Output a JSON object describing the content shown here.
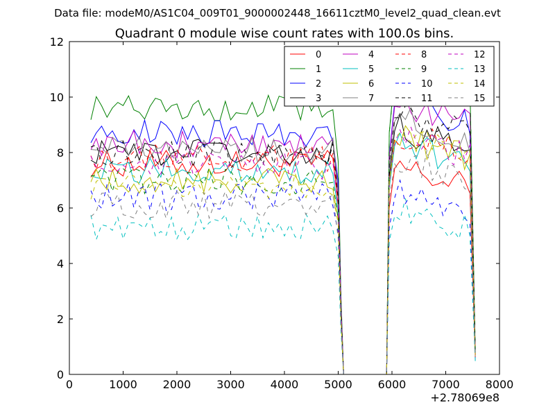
{
  "chart_data": {
    "type": "line",
    "suptitle": "Data file: modeM0/AS1C04_009T01_9000002448_16611cztM0_level2_quad_clean.evt",
    "title": "Quadrant 0 module wise count rates with 100.0s bins.",
    "xlabel": "",
    "ylabel": "",
    "x_offset_label": "+2.78069e8",
    "xlim": [
      0,
      8000
    ],
    "ylim": [
      0,
      12
    ],
    "xticks": [
      0,
      1000,
      2000,
      3000,
      4000,
      5000,
      6000,
      7000,
      8000
    ],
    "yticks": [
      0,
      2,
      4,
      6,
      8,
      10,
      12
    ],
    "xtick_labels": [
      "0",
      "1000",
      "2000",
      "3000",
      "4000",
      "5000",
      "6000",
      "7000",
      "8000"
    ],
    "ytick_labels": [
      "0",
      "2",
      "4",
      "6",
      "8",
      "10",
      "12"
    ],
    "grid": false,
    "legend_position": "top-right",
    "segments": [
      {
        "x_start": 400,
        "x_end": 4900,
        "step": 100
      },
      {
        "x_start": 5000,
        "x_end": 5100,
        "step": 100
      },
      {
        "x_start": 5900,
        "x_end": 6000,
        "step": 100
      },
      {
        "x_start": 6050,
        "x_end": 7450,
        "step": 100
      },
      {
        "x_start": 7550,
        "x_end": 7550,
        "step": 100
      }
    ],
    "series": [
      {
        "name": "0",
        "color": "#ff0000",
        "dash": "solid",
        "level": 7.6,
        "quiet": 7.5
      },
      {
        "name": "1",
        "color": "#008000",
        "dash": "solid",
        "level": 9.6,
        "quiet": 10.9
      },
      {
        "name": "2",
        "color": "#0000ff",
        "dash": "solid",
        "level": 8.7,
        "quiet": 9.9
      },
      {
        "name": "3",
        "color": "#000000",
        "dash": "solid",
        "level": 8.0,
        "quiet": 8.9
      },
      {
        "name": "4",
        "color": "#bf00bf",
        "dash": "solid",
        "level": 8.3,
        "quiet": 9.8
      },
      {
        "name": "5",
        "color": "#00bfbf",
        "dash": "solid",
        "level": 7.3,
        "quiet": 8.4
      },
      {
        "name": "6",
        "color": "#bfbf00",
        "dash": "solid",
        "level": 7.0,
        "quiet": 8.6
      },
      {
        "name": "7",
        "color": "#808080",
        "dash": "solid",
        "level": 8.1,
        "quiet": 9.3
      },
      {
        "name": "8",
        "color": "#ff0000",
        "dash": "dashed",
        "level": 7.8,
        "quiet": 8.7
      },
      {
        "name": "9",
        "color": "#008000",
        "dash": "dashed",
        "level": 7.0,
        "quiet": 10.9
      },
      {
        "name": "10",
        "color": "#0000ff",
        "dash": "dashed",
        "level": 6.4,
        "quiet": 6.6
      },
      {
        "name": "11",
        "color": "#000000",
        "dash": "dashed",
        "level": 7.9,
        "quiet": 9.5
      },
      {
        "name": "12",
        "color": "#bf00bf",
        "dash": "dashed",
        "level": 7.5,
        "quiet": 8.6
      },
      {
        "name": "13",
        "color": "#00bfbf",
        "dash": "dashed",
        "level": 5.3,
        "quiet": 6.0
      },
      {
        "name": "14",
        "color": "#bfbf00",
        "dash": "dashed",
        "level": 6.8,
        "quiet": 8.7
      },
      {
        "name": "15",
        "color": "#808080",
        "dash": "dashed",
        "level": 6.1,
        "quiet": 7.9
      }
    ]
  }
}
